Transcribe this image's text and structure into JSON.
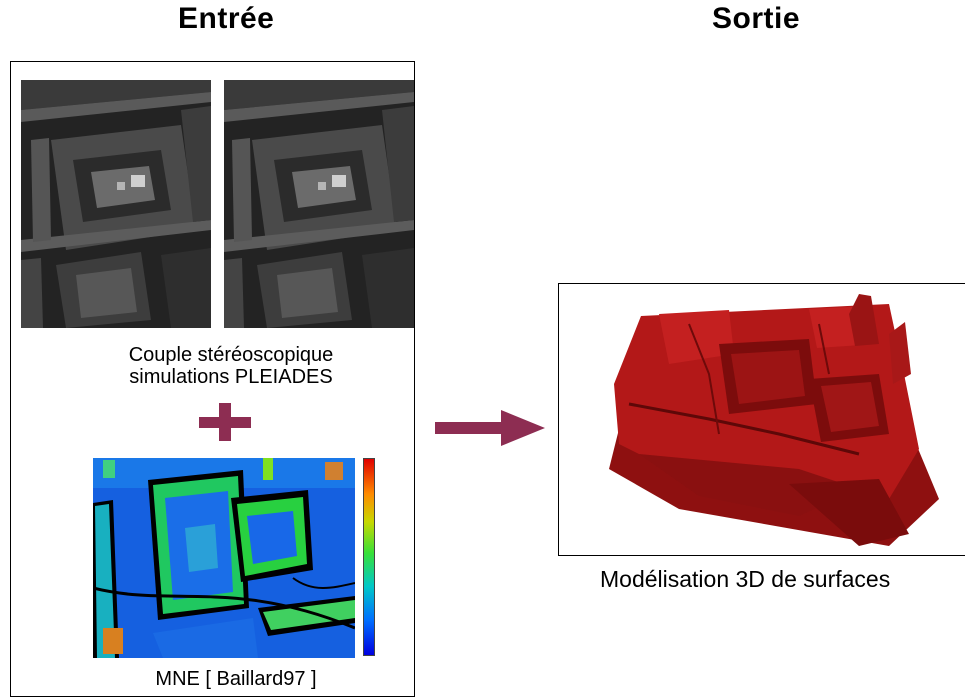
{
  "input": {
    "title": "Entrée",
    "stereo_caption_line1": "Couple stéréoscopique",
    "stereo_caption_line2": "simulations PLEIADES",
    "dem_caption": "MNE [ Baillard97 ]"
  },
  "output": {
    "title": "Sortie",
    "caption": "Modélisation 3D de surfaces"
  },
  "colors": {
    "accent": "#8d2d52",
    "model_red": "#b01818",
    "dem_background": "#1560e0"
  },
  "icons": {
    "plus": "plus-icon",
    "arrow": "right-arrow-icon"
  }
}
